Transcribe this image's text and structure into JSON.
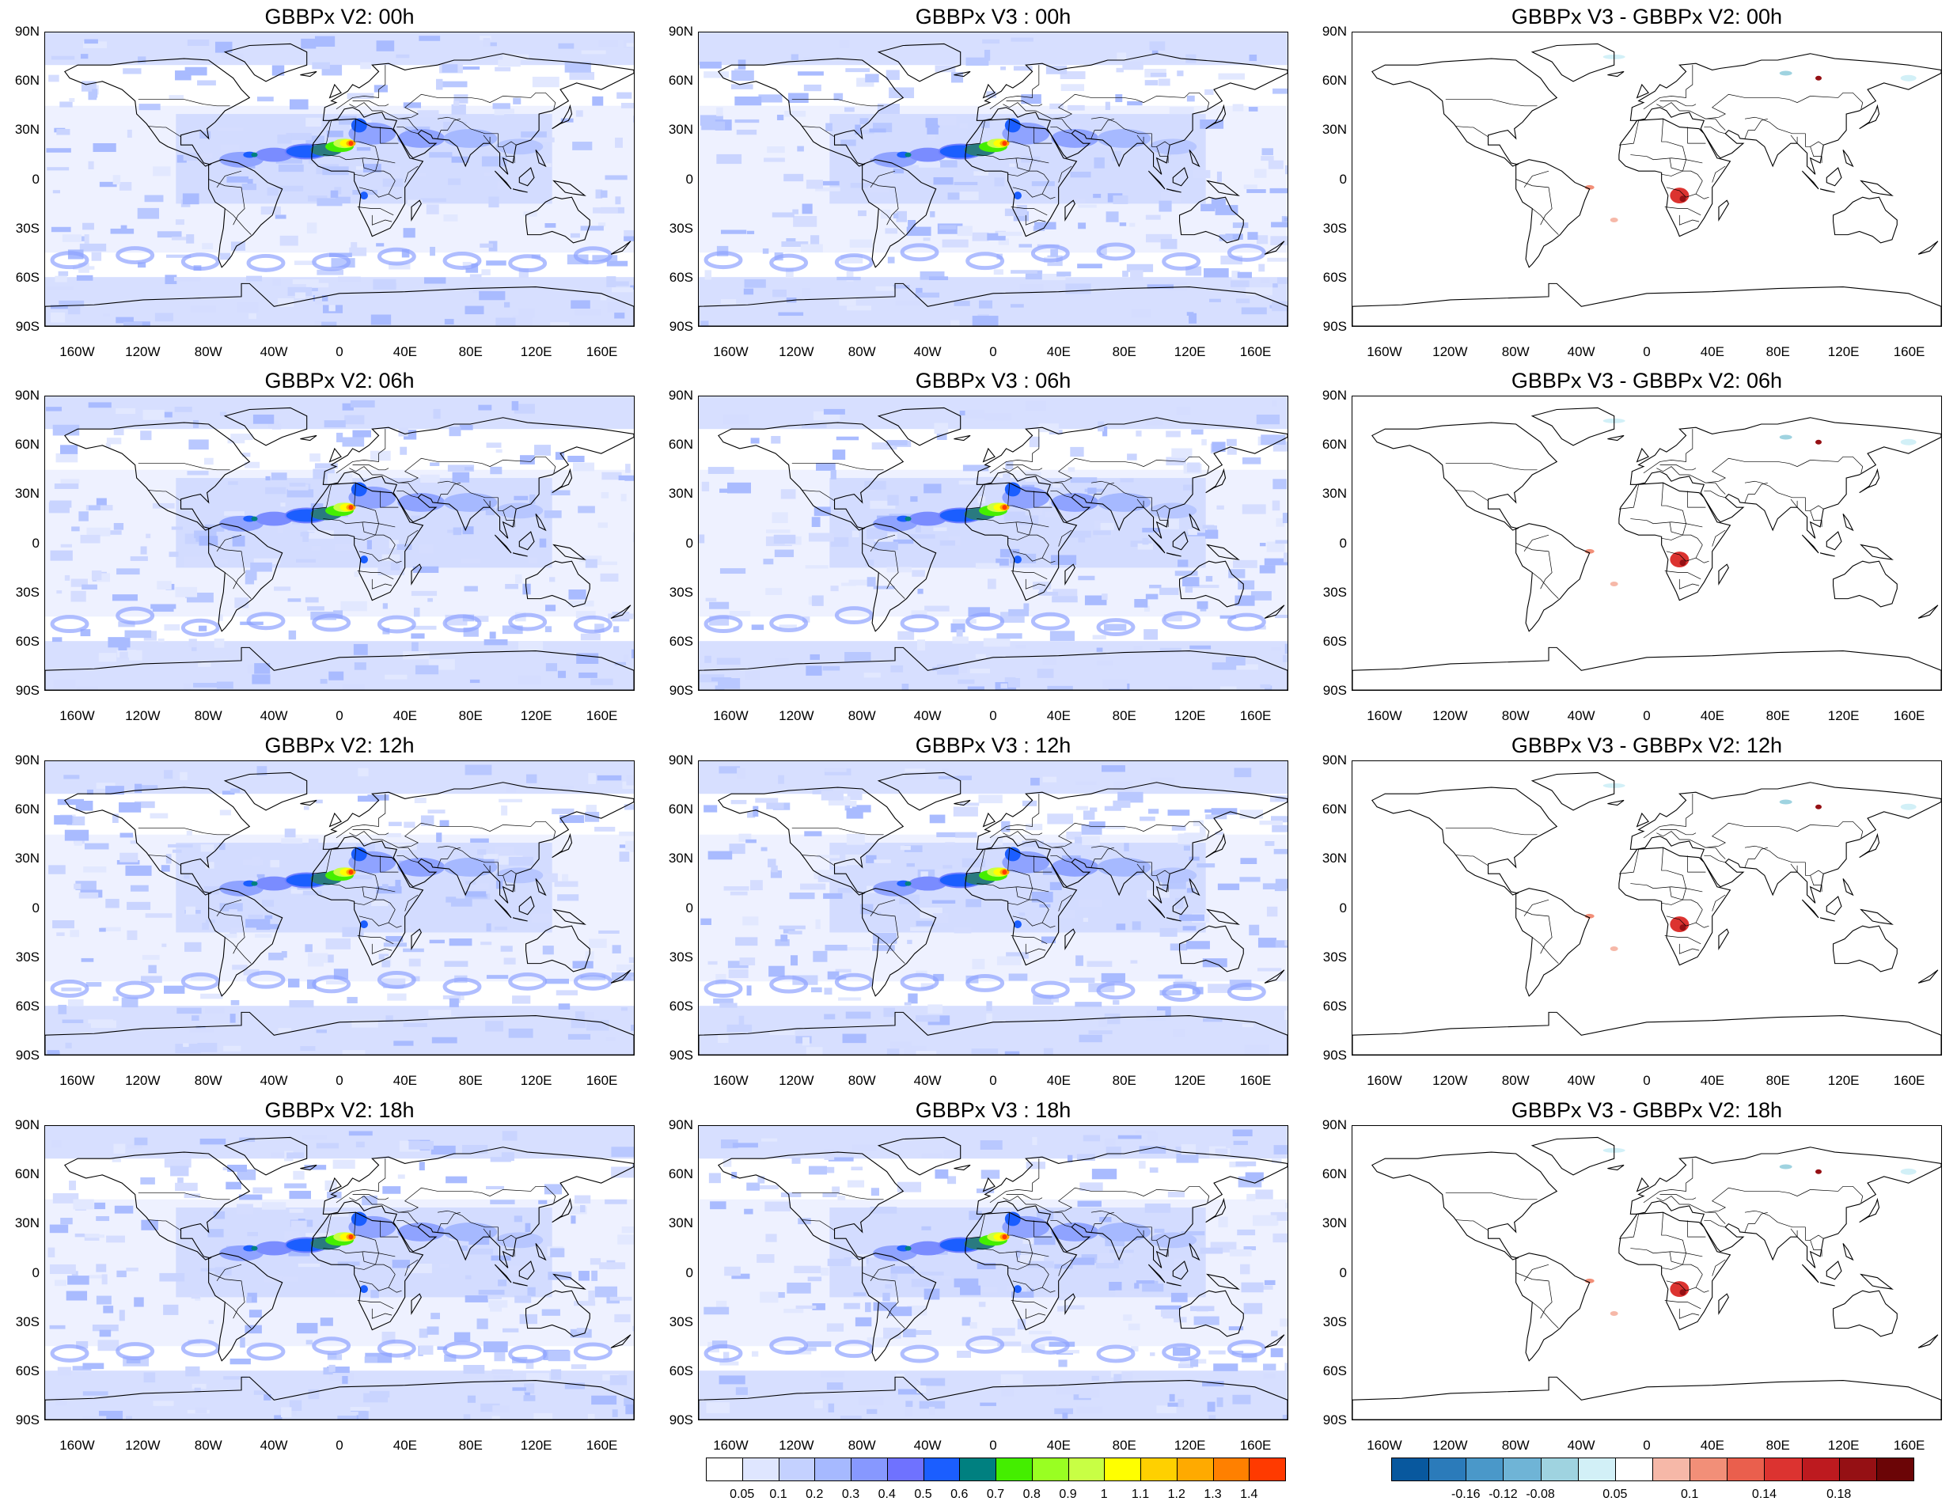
{
  "panels": [
    {
      "title": "GBBPx V2: 00h",
      "kind": "field"
    },
    {
      "title": "GBBPx V3 : 00h",
      "kind": "field"
    },
    {
      "title": "GBBPx V3 - GBBPx V2: 00h",
      "kind": "diff"
    },
    {
      "title": "GBBPx V2: 06h",
      "kind": "field"
    },
    {
      "title": "GBBPx V3 : 06h",
      "kind": "field"
    },
    {
      "title": "GBBPx V3 - GBBPx V2: 06h",
      "kind": "diff"
    },
    {
      "title": "GBBPx V2: 12h",
      "kind": "field"
    },
    {
      "title": "GBBPx V3 : 12h",
      "kind": "field"
    },
    {
      "title": "GBBPx V3 - GBBPx V2: 12h",
      "kind": "diff"
    },
    {
      "title": "GBBPx V2: 18h",
      "kind": "field"
    },
    {
      "title": "GBBPx V3 : 18h",
      "kind": "field"
    },
    {
      "title": "GBBPx V3 - GBBPx V2: 18h",
      "kind": "diff"
    }
  ],
  "lat_labels": [
    "90N",
    "60N",
    "30N",
    "0",
    "30S",
    "60S",
    "90S"
  ],
  "lon_labels": [
    "160W",
    "120W",
    "80W",
    "40W",
    "0",
    "40E",
    "80E",
    "120E",
    "160E"
  ],
  "field_legend": {
    "colors": [
      "#ffffff",
      "#dfe6ff",
      "#c4d1ff",
      "#a6b9ff",
      "#8798ff",
      "#6f72ff",
      "#1b5eff",
      "#008080",
      "#44ee00",
      "#99ff22",
      "#c8ff44",
      "#ffff00",
      "#ffd000",
      "#ffaa00",
      "#ff8000",
      "#ff3a00"
    ],
    "labels": [
      "0.05",
      "0.1",
      "0.2",
      "0.3",
      "0.4",
      "0.5",
      "0.6",
      "0.7",
      "0.8",
      "0.9",
      "1",
      "1.1",
      "1.2",
      "1.3",
      "1.4"
    ]
  },
  "diff_legend": {
    "colors": [
      "#08589e",
      "#2b7bba",
      "#4a98c9",
      "#6fb4d6",
      "#9fd3e0",
      "#d2f0f7",
      "#ffffff",
      "#f6b8a8",
      "#f28f78",
      "#ea5f4d",
      "#dc3330",
      "#bd1a1f",
      "#951014",
      "#6b0506"
    ],
    "labels": [
      "-0.16",
      "-0.12",
      "-0.08",
      "0.05",
      "0.1",
      "0.14",
      "0.18"
    ]
  }
}
